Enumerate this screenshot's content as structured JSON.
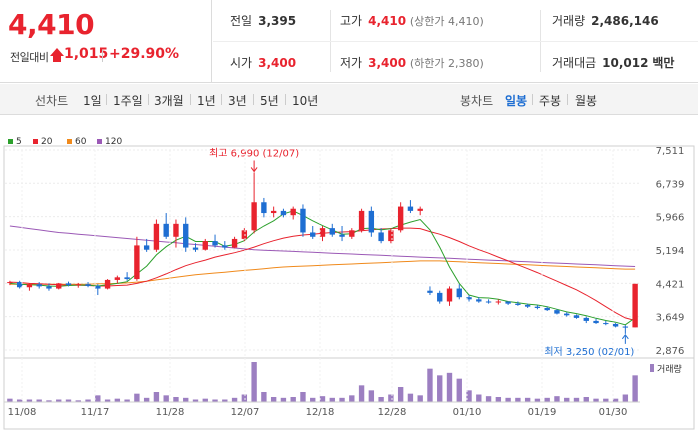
{
  "quote": {
    "price": "4,410",
    "change_label": "전일대비",
    "change_value": "1,015",
    "change_pct": "+29.90%",
    "prev_label": "전일",
    "prev_value": "3,395",
    "open_label": "시가",
    "open_value": "3,400",
    "high_label": "고가",
    "high_value": "4,410",
    "upper_limit": "(상한가 4,410)",
    "low_label": "저가",
    "low_value": "3,400",
    "lower_limit": "(하한가 2,380)",
    "volume_label": "거래량",
    "volume_value": "2,486,146",
    "amount_label": "거래대금",
    "amount_value": "10,012",
    "amount_unit": "백만"
  },
  "toolbar": {
    "line_chart": "선차트",
    "periods": [
      "1일",
      "1주일",
      "3개월",
      "1년",
      "3년",
      "5년",
      "10년"
    ],
    "candle_chart": "봉차트",
    "candle_periods": [
      "일봉",
      "주봉",
      "월봉"
    ],
    "active_candle": "일봉"
  },
  "chart_data": {
    "type": "candlestick",
    "legend": [
      {
        "name": "5",
        "color": "#2ca02c"
      },
      {
        "name": "20",
        "color": "#e8232e"
      },
      {
        "name": "60",
        "color": "#f08a1c"
      },
      {
        "name": "120",
        "color": "#9b59b6"
      }
    ],
    "y_ticks": [
      "7,511",
      "6,739",
      "5,966",
      "5,194",
      "4,421",
      "3,649",
      "2,876"
    ],
    "ylim": [
      2876,
      7511
    ],
    "x_ticks": [
      "11/08",
      "11/17",
      "11/28",
      "12/07",
      "12/18",
      "12/28",
      "01/10",
      "01/19",
      "01/30"
    ],
    "annotations": {
      "high": "최고 6,990 (12/07)",
      "low": "최저 3,250 (02/01)"
    },
    "volume_label": "거래량",
    "candles": [
      [
        4430,
        4480,
        4380,
        4450
      ],
      [
        4450,
        4480,
        4300,
        4330
      ],
      [
        4330,
        4420,
        4250,
        4400
      ],
      [
        4400,
        4450,
        4300,
        4350
      ],
      [
        4350,
        4420,
        4250,
        4300
      ],
      [
        4300,
        4430,
        4280,
        4420
      ],
      [
        4420,
        4460,
        4350,
        4380
      ],
      [
        4380,
        4430,
        4320,
        4400
      ],
      [
        4400,
        4450,
        4330,
        4360
      ],
      [
        4360,
        4400,
        4150,
        4300
      ],
      [
        4300,
        4520,
        4280,
        4500
      ],
      [
        4500,
        4600,
        4420,
        4560
      ],
      [
        4560,
        4680,
        4480,
        4520
      ],
      [
        4520,
        5500,
        4480,
        5300
      ],
      [
        5300,
        5450,
        5150,
        5200
      ],
      [
        5200,
        5900,
        5150,
        5800
      ],
      [
        5800,
        6050,
        5450,
        5500
      ],
      [
        5500,
        5900,
        5250,
        5800
      ],
      [
        5800,
        5950,
        5150,
        5250
      ],
      [
        5250,
        5350,
        5150,
        5200
      ],
      [
        5200,
        5450,
        5180,
        5400
      ],
      [
        5400,
        5550,
        5250,
        5300
      ],
      [
        5300,
        5400,
        5200,
        5250
      ],
      [
        5250,
        5500,
        5230,
        5450
      ],
      [
        5450,
        5700,
        5400,
        5650
      ],
      [
        5650,
        6990,
        5580,
        6300
      ],
      [
        6300,
        6400,
        5950,
        6050
      ],
      [
        6050,
        6200,
        5950,
        6100
      ],
      [
        6100,
        6150,
        5950,
        6000
      ],
      [
        6000,
        6200,
        5900,
        6150
      ],
      [
        6150,
        6250,
        5500,
        5600
      ],
      [
        5600,
        5750,
        5450,
        5500
      ],
      [
        5500,
        5750,
        5400,
        5700
      ],
      [
        5700,
        5800,
        5500,
        5550
      ],
      [
        5550,
        5750,
        5400,
        5500
      ],
      [
        5500,
        5700,
        5450,
        5650
      ],
      [
        5650,
        6150,
        5600,
        6100
      ],
      [
        6100,
        6200,
        5500,
        5600
      ],
      [
        5600,
        5700,
        5350,
        5400
      ],
      [
        5400,
        5700,
        5350,
        5650
      ],
      [
        5650,
        6300,
        5600,
        6200
      ],
      [
        6200,
        6350,
        6050,
        6100
      ],
      [
        6100,
        6200,
        6000,
        6150
      ],
      [
        4250,
        4350,
        4150,
        4200
      ],
      [
        4200,
        4250,
        3950,
        4000
      ],
      [
        4000,
        4350,
        3900,
        4300
      ],
      [
        4300,
        4400,
        4050,
        4100
      ],
      [
        4100,
        4150,
        4000,
        4050
      ],
      [
        4050,
        4100,
        3970,
        4000
      ],
      [
        4000,
        4050,
        3950,
        3980
      ],
      [
        3980,
        4050,
        3930,
        4000
      ],
      [
        4000,
        4000,
        3920,
        3950
      ],
      [
        3950,
        4000,
        3900,
        3920
      ],
      [
        3920,
        3950,
        3850,
        3880
      ],
      [
        3880,
        3920,
        3820,
        3850
      ],
      [
        3850,
        3880,
        3780,
        3800
      ],
      [
        3800,
        3820,
        3700,
        3720
      ],
      [
        3720,
        3750,
        3650,
        3680
      ],
      [
        3680,
        3700,
        3600,
        3620
      ],
      [
        3620,
        3650,
        3500,
        3550
      ],
      [
        3550,
        3600,
        3480,
        3500
      ],
      [
        3500,
        3550,
        3450,
        3480
      ],
      [
        3480,
        3500,
        3400,
        3420
      ],
      [
        3420,
        3450,
        3250,
        3395
      ],
      [
        3400,
        4410,
        3400,
        4410
      ]
    ],
    "volumes": [
      4,
      3,
      3,
      3,
      2,
      3,
      3,
      2,
      3,
      8,
      3,
      4,
      3,
      10,
      5,
      12,
      8,
      6,
      5,
      3,
      4,
      3,
      3,
      5,
      9,
      48,
      12,
      6,
      5,
      6,
      12,
      5,
      7,
      5,
      5,
      8,
      20,
      14,
      6,
      9,
      18,
      10,
      8,
      40,
      32,
      35,
      28,
      14,
      9,
      7,
      6,
      5,
      5,
      5,
      4,
      5,
      7,
      5,
      5,
      6,
      4,
      4,
      4,
      9,
      32
    ],
    "ma5": [
      4420,
      4400,
      4390,
      4380,
      4360,
      4350,
      4370,
      4380,
      4380,
      4360,
      4390,
      4420,
      4460,
      4640,
      4820,
      5080,
      5270,
      5420,
      5510,
      5390,
      5390,
      5390,
      5280,
      5320,
      5410,
      5610,
      5750,
      5870,
      6030,
      6100,
      5990,
      5870,
      5760,
      5660,
      5560,
      5570,
      5690,
      5700,
      5660,
      5690,
      5770,
      5840,
      5900,
      5660,
      5260,
      4800,
      4420,
      4150,
      4090,
      4080,
      4050,
      4000,
      3970,
      3940,
      3920,
      3880,
      3820,
      3760,
      3720,
      3670,
      3610,
      3560,
      3520,
      3460,
      3620
    ],
    "ma20": [
      4450,
      4440,
      4420,
      4410,
      4400,
      4390,
      4380,
      4380,
      4370,
      4360,
      4360,
      4370,
      4380,
      4420,
      4470,
      4550,
      4640,
      4740,
      4830,
      4900,
      4960,
      5030,
      5080,
      5130,
      5190,
      5260,
      5340,
      5410,
      5470,
      5510,
      5540,
      5560,
      5580,
      5600,
      5610,
      5620,
      5640,
      5660,
      5680,
      5690,
      5700,
      5700,
      5690,
      5620,
      5560,
      5480,
      5390,
      5290,
      5200,
      5120,
      5030,
      4940,
      4850,
      4760,
      4670,
      4570,
      4470,
      4370,
      4270,
      4150,
      4020,
      3880,
      3740,
      3620,
      3560
    ],
    "ma60": [
      4400,
      4400,
      4400,
      4400,
      4400,
      4400,
      4400,
      4400,
      4400,
      4410,
      4410,
      4420,
      4430,
      4450,
      4470,
      4500,
      4530,
      4560,
      4590,
      4620,
      4640,
      4660,
      4680,
      4700,
      4720,
      4740,
      4760,
      4780,
      4800,
      4810,
      4820,
      4830,
      4840,
      4850,
      4860,
      4870,
      4880,
      4890,
      4900,
      4910,
      4920,
      4930,
      4940,
      4940,
      4940,
      4930,
      4920,
      4910,
      4900,
      4890,
      4880,
      4870,
      4860,
      4850,
      4840,
      4830,
      4820,
      4810,
      4800,
      4790,
      4780,
      4770,
      4760,
      4750,
      4750
    ],
    "ma120": [
      5750,
      5720,
      5690,
      5660,
      5630,
      5600,
      5580,
      5560,
      5540,
      5520,
      5500,
      5480,
      5460,
      5440,
      5420,
      5400,
      5380,
      5360,
      5340,
      5320,
      5300,
      5280,
      5260,
      5240,
      5220,
      5200,
      5190,
      5180,
      5170,
      5160,
      5150,
      5140,
      5130,
      5120,
      5110,
      5100,
      5090,
      5080,
      5070,
      5060,
      5050,
      5040,
      5030,
      5020,
      5010,
      5000,
      4990,
      4980,
      4970,
      4960,
      4950,
      4940,
      4930,
      4920,
      4910,
      4900,
      4890,
      4880,
      4870,
      4860,
      4850,
      4840,
      4830,
      4820,
      4810
    ]
  }
}
